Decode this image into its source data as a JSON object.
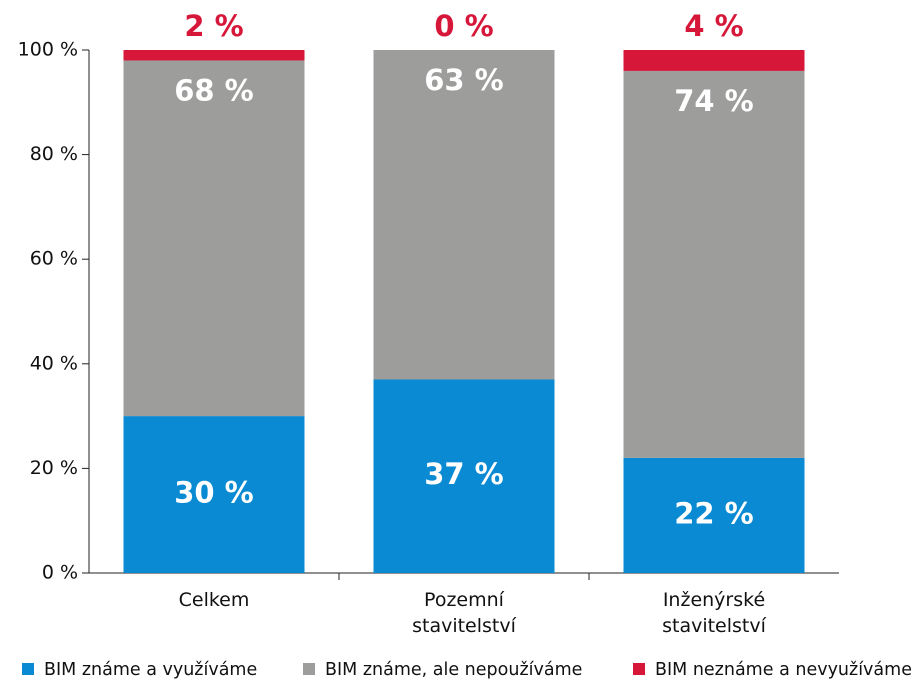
{
  "chart_data": {
    "type": "stacked_bar",
    "categories": [
      "Celkem",
      "Pozemní\nstavitelství",
      "Inženýrské\nstavitelství"
    ],
    "series": [
      {
        "name": "BIM známe a využíváme",
        "color": "#0a8ad2",
        "values": [
          30,
          37,
          22
        ],
        "value_labels": [
          "30 %",
          "37 %",
          "22 %"
        ]
      },
      {
        "name": "BIM známe, ale nepoužíváme",
        "color": "#9d9d9c",
        "values": [
          68,
          63,
          74
        ],
        "value_labels": [
          "68 %",
          "63 %",
          "74 %"
        ]
      },
      {
        "name": "BIM neznáme a nevyužíváme",
        "color": "#d6173a",
        "values": [
          2,
          0,
          4
        ],
        "value_labels": [
          "2 %",
          "0 %",
          "4 %"
        ]
      }
    ],
    "ylim": [
      0,
      100
    ],
    "yticks": [
      {
        "value": 0,
        "label": "0 %"
      },
      {
        "value": 20,
        "label": "20 %"
      },
      {
        "value": 40,
        "label": "40 %"
      },
      {
        "value": 60,
        "label": "60 %"
      },
      {
        "value": 80,
        "label": "80 %"
      },
      {
        "value": 100,
        "label": "100 %"
      }
    ],
    "grid": false
  }
}
